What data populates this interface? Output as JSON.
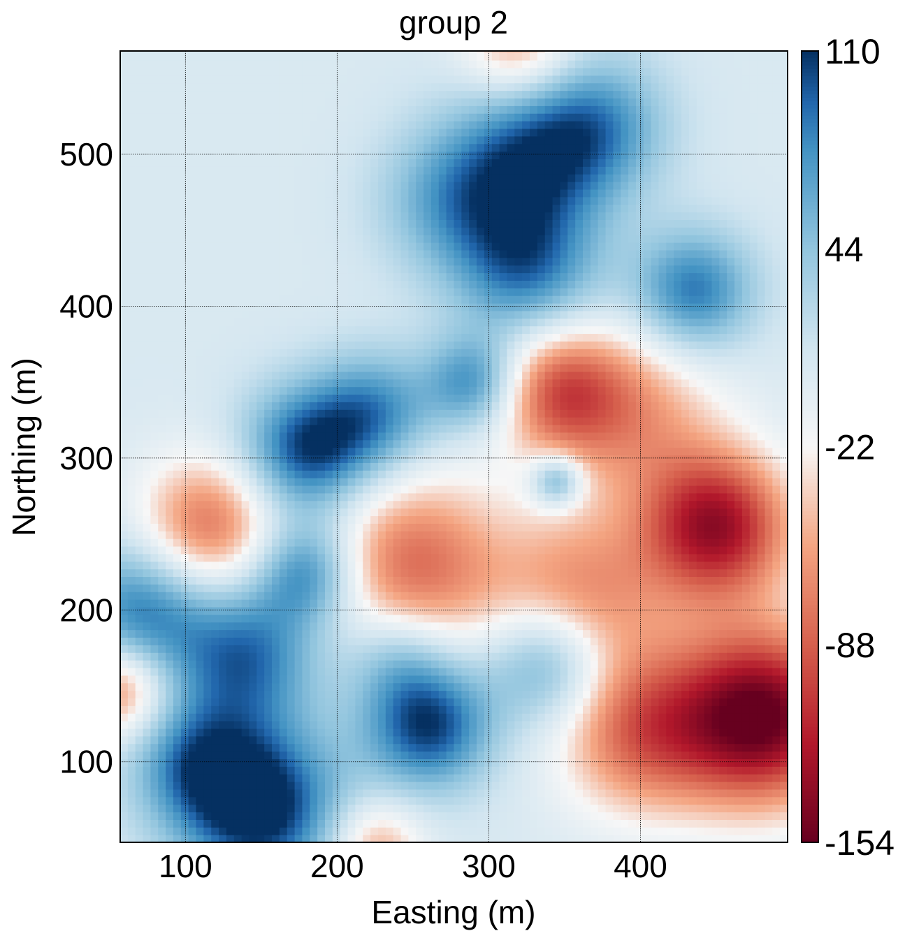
{
  "chart_data": {
    "type": "heatmap",
    "title": "group 2",
    "xlabel": "Easting (m)",
    "ylabel": "Northing (m)",
    "xlim": [
      57,
      497
    ],
    "ylim": [
      47,
      568
    ],
    "x_ticks": [
      100,
      200,
      300,
      400
    ],
    "y_ticks": [
      100,
      200,
      300,
      400,
      500
    ],
    "grid": true,
    "colormap": "RdBu",
    "colorbar": {
      "min": -154,
      "max": 110,
      "ticks": [
        110,
        44,
        -22,
        -88,
        -154
      ]
    },
    "color_stops": [
      {
        "value": -154,
        "color": "#67001f"
      },
      {
        "value": -121,
        "color": "#b2182b"
      },
      {
        "value": -88,
        "color": "#d6604d"
      },
      {
        "value": -55,
        "color": "#f4a582"
      },
      {
        "value": -22,
        "color": "#f7f7f7"
      },
      {
        "value": 11,
        "color": "#d1e5f0"
      },
      {
        "value": 44,
        "color": "#92c5de"
      },
      {
        "value": 77,
        "color": "#4393c3"
      },
      {
        "value": 93,
        "color": "#2166ac"
      },
      {
        "value": 110,
        "color": "#053061"
      }
    ],
    "background_value": 4,
    "features": [
      {
        "x": 320,
        "y": 570,
        "amp": -65,
        "sigma": 26
      },
      {
        "x": 330,
        "y": 500,
        "amp": 85,
        "sigma": 38
      },
      {
        "x": 375,
        "y": 520,
        "amp": 55,
        "sigma": 32
      },
      {
        "x": 275,
        "y": 470,
        "amp": 55,
        "sigma": 34
      },
      {
        "x": 325,
        "y": 425,
        "amp": 80,
        "sigma": 34
      },
      {
        "x": 435,
        "y": 410,
        "amp": 85,
        "sigma": 28
      },
      {
        "x": 290,
        "y": 350,
        "amp": 75,
        "sigma": 22
      },
      {
        "x": 225,
        "y": 330,
        "amp": 70,
        "sigma": 28
      },
      {
        "x": 180,
        "y": 305,
        "amp": 100,
        "sigma": 30
      },
      {
        "x": 115,
        "y": 255,
        "amp": -85,
        "sigma": 32
      },
      {
        "x": 345,
        "y": 345,
        "amp": -85,
        "sigma": 30
      },
      {
        "x": 345,
        "y": 285,
        "amp": 75,
        "sigma": 12
      },
      {
        "x": 250,
        "y": 230,
        "amp": -85,
        "sigma": 42
      },
      {
        "x": 395,
        "y": 330,
        "amp": -60,
        "sigma": 40
      },
      {
        "x": 450,
        "y": 255,
        "amp": -135,
        "sigma": 34
      },
      {
        "x": 480,
        "y": 130,
        "amp": -160,
        "sigma": 40
      },
      {
        "x": 400,
        "y": 120,
        "amp": -85,
        "sigma": 38
      },
      {
        "x": 360,
        "y": 210,
        "amp": -70,
        "sigma": 40
      },
      {
        "x": 180,
        "y": 225,
        "amp": 80,
        "sigma": 24
      },
      {
        "x": 70,
        "y": 200,
        "amp": 80,
        "sigma": 32
      },
      {
        "x": 140,
        "y": 170,
        "amp": 85,
        "sigma": 34
      },
      {
        "x": 57,
        "y": 148,
        "amp": -80,
        "sigma": 22
      },
      {
        "x": 150,
        "y": 70,
        "amp": 115,
        "sigma": 38
      },
      {
        "x": 105,
        "y": 100,
        "amp": 65,
        "sigma": 30
      },
      {
        "x": 260,
        "y": 125,
        "amp": 105,
        "sigma": 30
      },
      {
        "x": 340,
        "y": 165,
        "amp": 75,
        "sigma": 28
      },
      {
        "x": 225,
        "y": 45,
        "amp": -60,
        "sigma": 22
      },
      {
        "x": 240,
        "y": 170,
        "amp": 40,
        "sigma": 24
      }
    ]
  }
}
